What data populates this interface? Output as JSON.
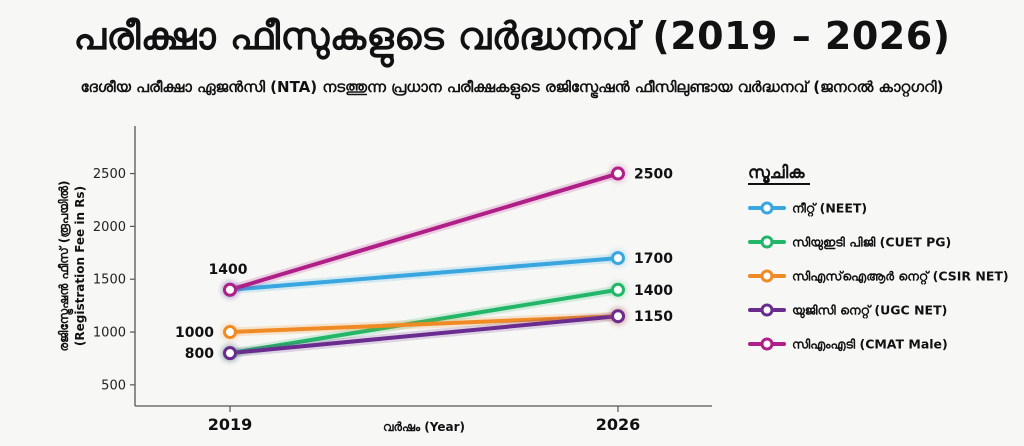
{
  "header": {
    "title": "പരീക്ഷാ ഫീസുകളുടെ വർദ്ധനവ് (2019 – 2026)",
    "subtitle": "ദേശീയ പരീക്ഷാ ഏജൻസി (NTA) നടത്തുന്ന പ്രധാന പരീക്ഷകളുടെ രജിസ്ട്രേഷൻ ഫീസിലുണ്ടായ വർദ്ധനവ് (ജനറൽ കാറ്റഗറി)"
  },
  "chart_data": {
    "type": "line",
    "x": [
      "2019",
      "2026"
    ],
    "xlabel": "വർഷം (Year)",
    "ylabel_line1": "രജിസ്ട്രേഷൻ ഫീസ് (രൂപയിൽ)",
    "ylabel_line2": "(Registration Fee in Rs)",
    "y_ticks": [
      500,
      1000,
      1500,
      2000,
      2500
    ],
    "ylim": [
      300,
      2950
    ],
    "grid": false,
    "legend_title": "സൂചിക",
    "legend_position": "right",
    "series": [
      {
        "name": "നീറ്റ് (NEET)",
        "color": "#3aa6e0",
        "values": [
          1400,
          1700
        ]
      },
      {
        "name": "സിയുഇടി പിജി (CUET PG)",
        "color": "#22b768",
        "values": [
          800,
          1400
        ]
      },
      {
        "name": "സിഎസ്ഐആർ നെറ്റ് (CSIR NET)",
        "color": "#f08a24",
        "values": [
          1000,
          1150
        ]
      },
      {
        "name": "യുജിസി നെറ്റ് (UGC NET)",
        "color": "#6a2c8e",
        "values": [
          800,
          1150
        ]
      },
      {
        "name": "സിഎംഎടി (CMAT Male)",
        "color": "#b01e87",
        "values": [
          1400,
          2500
        ]
      }
    ],
    "data_labels": {
      "start": [
        "1400",
        "1000",
        "800"
      ],
      "end": [
        "2500",
        "1700",
        "1400",
        "1150"
      ]
    }
  }
}
